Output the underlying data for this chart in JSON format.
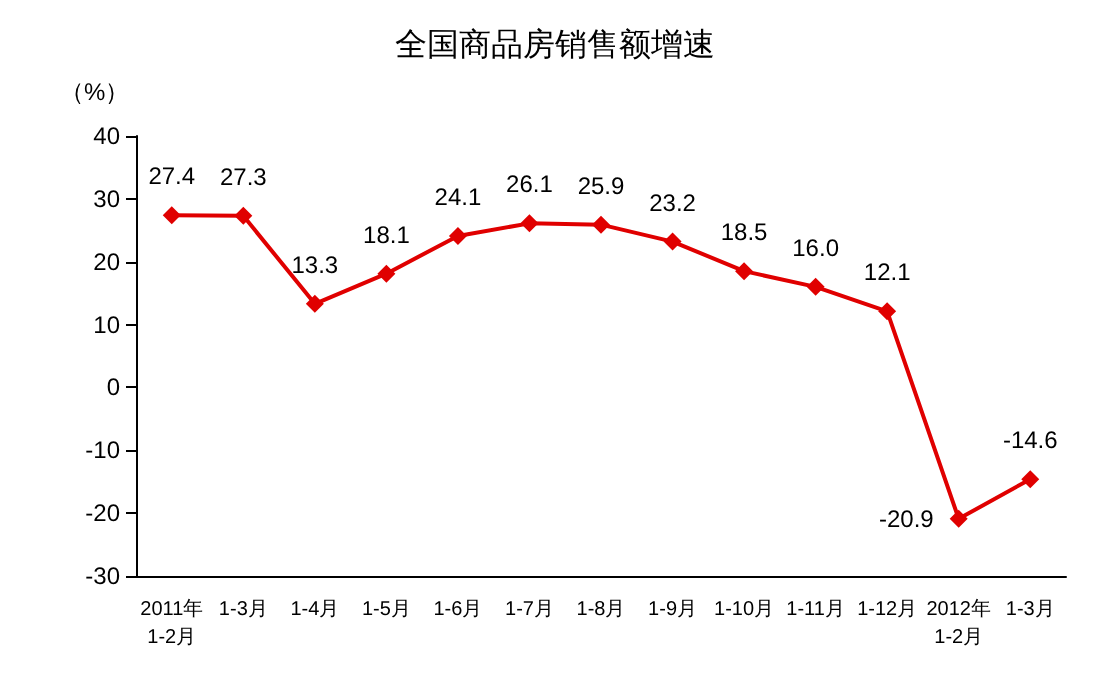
{
  "chart_data": {
    "type": "line",
    "title": "全国商品房销售额增速",
    "ylabel": "（%）",
    "categories": [
      "2011年\n1-2月",
      "1-3月",
      "1-4月",
      "1-5月",
      "1-6月",
      "1-7月",
      "1-8月",
      "1-9月",
      "1-10月",
      "1-11月",
      "1-12月",
      "2012年\n1-2月",
      "1-3月"
    ],
    "series": [
      {
        "color": "#e00000",
        "values": [
          27.4,
          27.3,
          13.3,
          18.1,
          24.1,
          26.1,
          25.9,
          23.2,
          18.5,
          16.0,
          12.1,
          -20.9,
          -14.6
        ],
        "value_labels": [
          "27.4",
          "27.3",
          "13.3",
          "18.1",
          "24.1",
          "26.1",
          "25.9",
          "23.2",
          "18.5",
          "16.0",
          "12.1",
          "-20.9",
          "-14.6"
        ]
      }
    ],
    "ylim": [
      -30,
      40
    ],
    "yticks": [
      -30,
      -20,
      -10,
      0,
      10,
      20,
      30,
      40
    ],
    "grid": false,
    "marker": "diamond",
    "line_style": "solid"
  }
}
